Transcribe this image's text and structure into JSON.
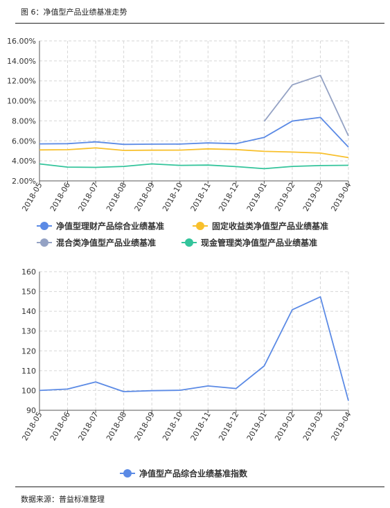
{
  "figure_title": "图 6：净值型产品业绩基准走势",
  "source_note": "数据来源：普益标准整理",
  "chart_data": [
    {
      "type": "line",
      "categories": [
        "2018-05",
        "2018-06",
        "2018-07",
        "2018-08",
        "2018-09",
        "2018-10",
        "2018-11",
        "2018-12",
        "2019-01",
        "2019-02",
        "2019-03",
        "2019-04"
      ],
      "ytick_labels": [
        "2.00%",
        "4.00%",
        "6.00%",
        "8.00%",
        "10.00%",
        "12.00%",
        "14.00%",
        "16.00%"
      ],
      "ylim": [
        2,
        16
      ],
      "grid": true,
      "legend": "bottom",
      "series": [
        {
          "name": "净值型理财产品综合业绩基准",
          "color": "#5b8ae5",
          "values": [
            5.7,
            5.72,
            5.9,
            5.65,
            5.67,
            5.68,
            5.8,
            5.72,
            6.35,
            7.98,
            8.35,
            5.38
          ]
        },
        {
          "name": "固定收益类净值型产品业绩基准",
          "color": "#f8c02c",
          "values": [
            5.1,
            5.12,
            5.3,
            5.05,
            5.07,
            5.08,
            5.2,
            5.13,
            4.95,
            4.88,
            4.78,
            4.33
          ]
        },
        {
          "name": "混合类净值型产品业绩基准",
          "color": "#94a2c4",
          "values": [
            null,
            null,
            null,
            null,
            null,
            null,
            null,
            null,
            7.95,
            11.6,
            12.55,
            6.5
          ]
        },
        {
          "name": "现金管理类净值型产品业绩基准",
          "color": "#33c49b",
          "values": [
            3.7,
            3.38,
            3.35,
            3.45,
            3.7,
            3.55,
            3.58,
            3.43,
            3.22,
            3.45,
            3.53,
            3.56
          ]
        }
      ]
    },
    {
      "type": "line",
      "categories": [
        "2018-05",
        "2018-06",
        "2018-07",
        "2018-08",
        "2018-09",
        "2018-10",
        "2018-11",
        "2018-12",
        "2019-01",
        "2019-02",
        "2019-03",
        "2019-04"
      ],
      "ytick_labels": [
        "90",
        "100",
        "110",
        "120",
        "130",
        "140",
        "150",
        "160"
      ],
      "ylim": [
        90,
        160
      ],
      "grid": true,
      "legend": "bottom",
      "series": [
        {
          "name": "净值型产品综合业绩基准指数",
          "color": "#5b8ae5",
          "values": [
            100,
            100.7,
            104.3,
            99.4,
            99.9,
            100.1,
            102.3,
            101.0,
            112.4,
            140.8,
            147.3,
            94.8
          ]
        }
      ]
    }
  ]
}
